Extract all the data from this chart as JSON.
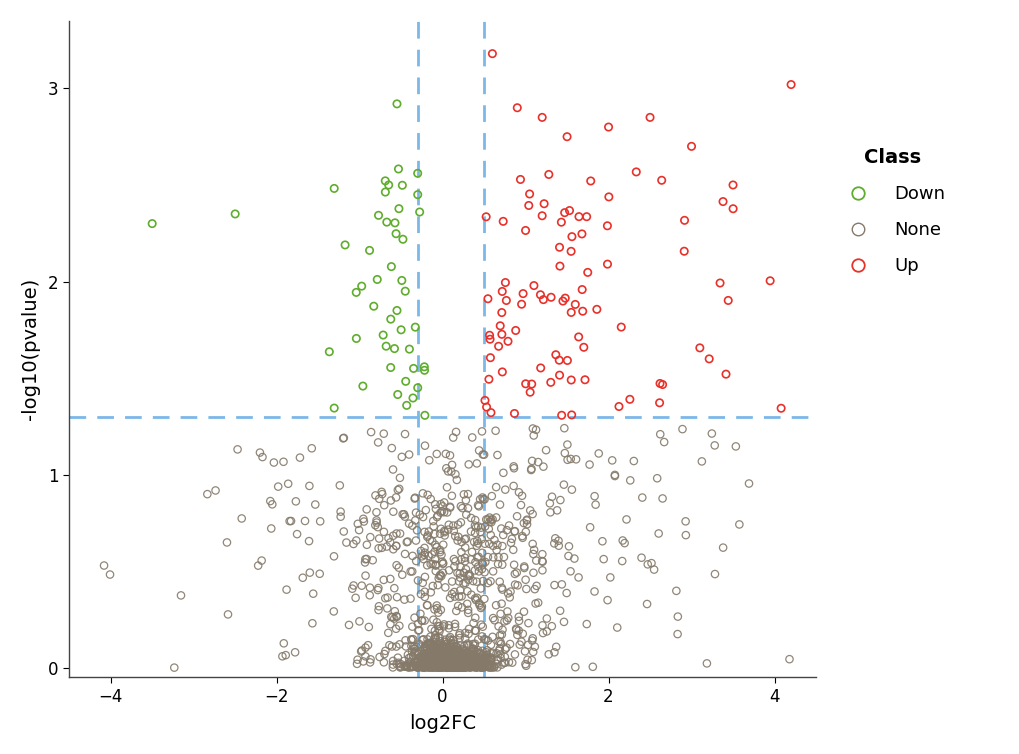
{
  "title": "",
  "xlabel": "log2FC",
  "ylabel": "-log10(pvalue)",
  "xlim": [
    -4.5,
    4.5
  ],
  "ylim": [
    -0.05,
    3.35
  ],
  "xticks": [
    -4,
    -2,
    0,
    2,
    4
  ],
  "yticks": [
    0,
    1,
    2,
    3
  ],
  "vline1": -0.3,
  "vline2": 0.5,
  "hline": 1.3,
  "vline_color": "#7bb8e8",
  "hline_color": "#7bb8e8",
  "color_down": "#5fad2c",
  "color_none": "#857a6a",
  "color_up": "#e8312a",
  "marker_size": 28,
  "legend_title": "Class",
  "legend_labels": [
    "Down",
    "None",
    "Up"
  ],
  "background_color": "#ffffff"
}
